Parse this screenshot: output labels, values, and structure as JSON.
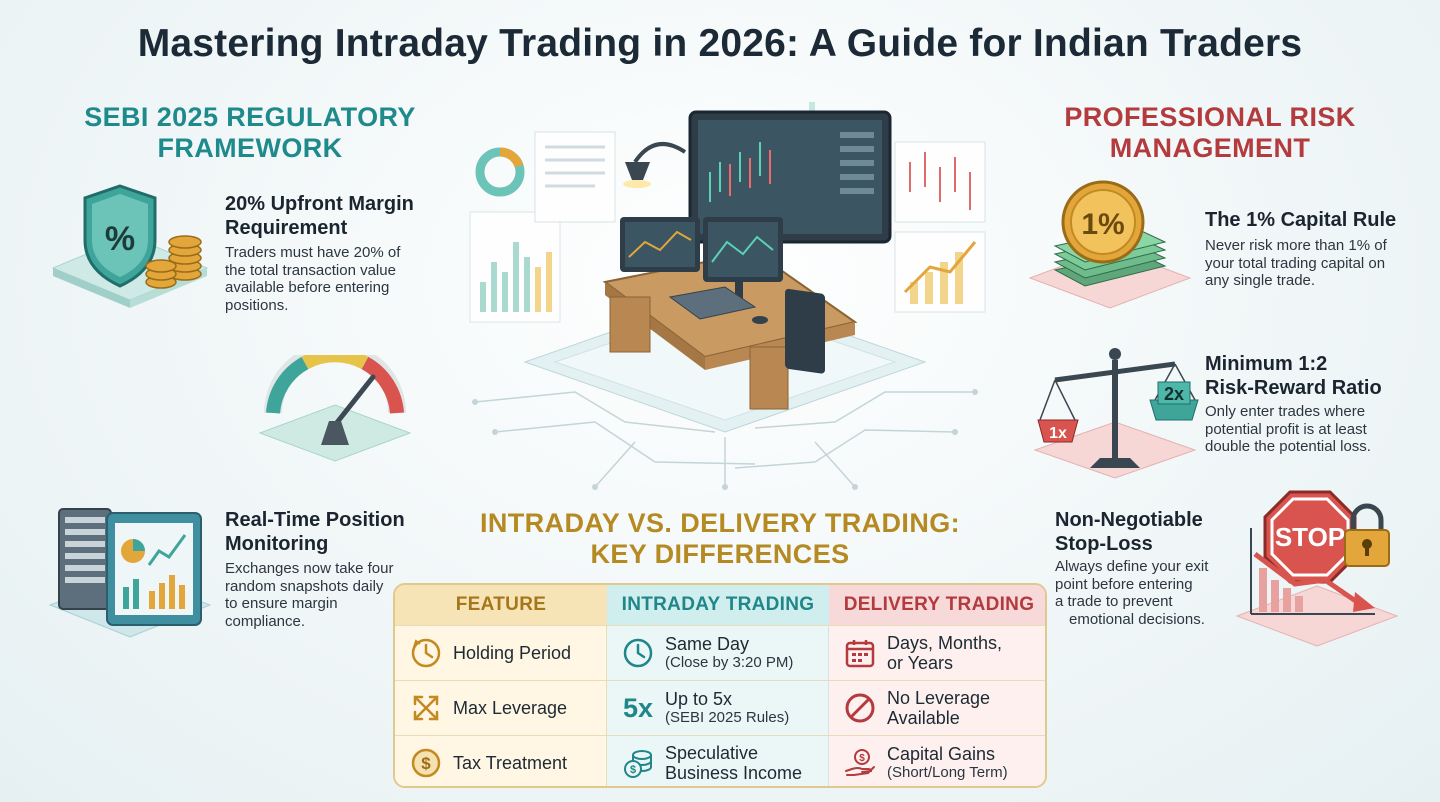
{
  "title": "Mastering Intraday Trading in 2026: A Guide for Indian Traders",
  "sebi": {
    "heading_line1": "SEBI 2025 REGULATORY",
    "heading_line2": "FRAMEWORK",
    "items": [
      {
        "title_line1": "20% Upfront Margin",
        "title_line2": "Requirement",
        "text_lines": [
          "Traders must have 20% of",
          "the total transaction value",
          "available before entering",
          "positions."
        ]
      },
      {
        "title_line1": "Real-Time Position",
        "title_line2": "Monitoring",
        "text_lines": [
          "Exchanges now take four",
          "random snapshots daily",
          "to ensure margin",
          "compliance."
        ]
      }
    ],
    "shield_symbol": "%"
  },
  "risk": {
    "heading_line1": "PROFESSIONAL RISK",
    "heading_line2": "MANAGEMENT",
    "items": [
      {
        "title_line1": "The 1% Capital Rule",
        "text_lines": [
          "Never risk more than 1% of",
          "your total trading capital on",
          "any single trade."
        ]
      },
      {
        "title_line1": "Minimum 1:2",
        "title_line2": "Risk-Reward Ratio",
        "text_lines": [
          "Only enter trades where",
          "potential profit is at least",
          "double the potential loss."
        ]
      },
      {
        "title_line1": "Non-Negotiable",
        "title_line2": "Stop-Loss",
        "text_lines": [
          "Always define your exit",
          "point before entering",
          "a trade to prevent",
          "emotional decisions."
        ]
      }
    ],
    "coin_label": "1%",
    "scale_left": "1x",
    "scale_right": "2x",
    "stop_label": "STOP"
  },
  "comparison": {
    "heading_line1": "INTRADAY VS. DELIVERY TRADING:",
    "heading_line2": "KEY DIFFERENCES",
    "columns": [
      "FEATURE",
      "INTRADAY TRADING",
      "DELIVERY TRADING"
    ],
    "rows": [
      {
        "feature": "Holding Period",
        "feature_icon": "clock-icon",
        "intraday_main": "Same Day",
        "intraday_sub": "(Close by 3:20 PM)",
        "intraday_icon": "clock-icon",
        "delivery_main": "Days, Months,",
        "delivery_sub": "or Years",
        "delivery_icon": "calendar-icon"
      },
      {
        "feature": "Max Leverage",
        "feature_icon": "expand-arrows-icon",
        "intraday_badge": "5x",
        "intraday_main": "Up to 5x",
        "intraday_sub": "(SEBI 2025 Rules)",
        "delivery_main": "No Leverage",
        "delivery_sub": "Available",
        "delivery_icon": "no-entry-icon"
      },
      {
        "feature": "Tax Treatment",
        "feature_icon": "dollar-coin-icon",
        "intraday_main": "Speculative",
        "intraday_sub": "Business Income",
        "intraday_icon": "coins-icon",
        "delivery_main": "Capital Gains",
        "delivery_sub": "(Short/Long Term)",
        "delivery_icon": "hand-coin-icon"
      }
    ]
  },
  "colors": {
    "teal": "#1f8a8c",
    "red": "#b33a3d",
    "gold": "#b58a22"
  }
}
